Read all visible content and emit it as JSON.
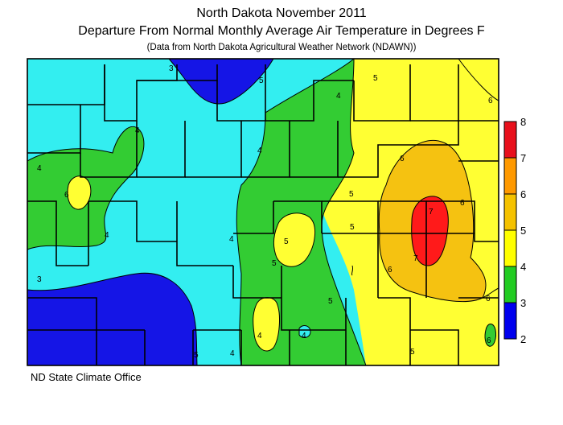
{
  "title": "North Dakota November 2011",
  "subtitle": "Departure From Normal Monthly Average Air Temperature in Degrees F",
  "source_note": "(Data from North Dakota Agricultural Weather Network (NDAWN))",
  "footer": "ND State Climate Office",
  "legend": {
    "classes": [
      {
        "label": "8",
        "color": "#e8101c"
      },
      {
        "label": "7",
        "color": "#ff9900"
      },
      {
        "label": "6",
        "color": "#f5c200"
      },
      {
        "label": "5",
        "color": "#ffff00"
      },
      {
        "label": "4",
        "color": "#22cc22"
      },
      {
        "label": "3",
        "color": "#00ffff"
      },
      {
        "label": "2",
        "color": "#0000ee"
      }
    ]
  },
  "colors": {
    "band_2_3": "#1515e6",
    "band_3_4": "#33eef0",
    "band_4_5": "#33cc33",
    "band_5_6": "#ffff33",
    "band_6_7": "#f5c211",
    "band_7_8": "#ff1a1a"
  },
  "contour_labels": [
    "5",
    "4",
    "4",
    "5",
    "6",
    "4",
    "4",
    "3",
    "4",
    "6",
    "5",
    "5",
    "4",
    "4",
    "5",
    "6",
    "5",
    "6",
    "6",
    "6",
    "7",
    "6",
    "7",
    "5",
    "5",
    "4",
    "4",
    "5",
    "3"
  ]
}
